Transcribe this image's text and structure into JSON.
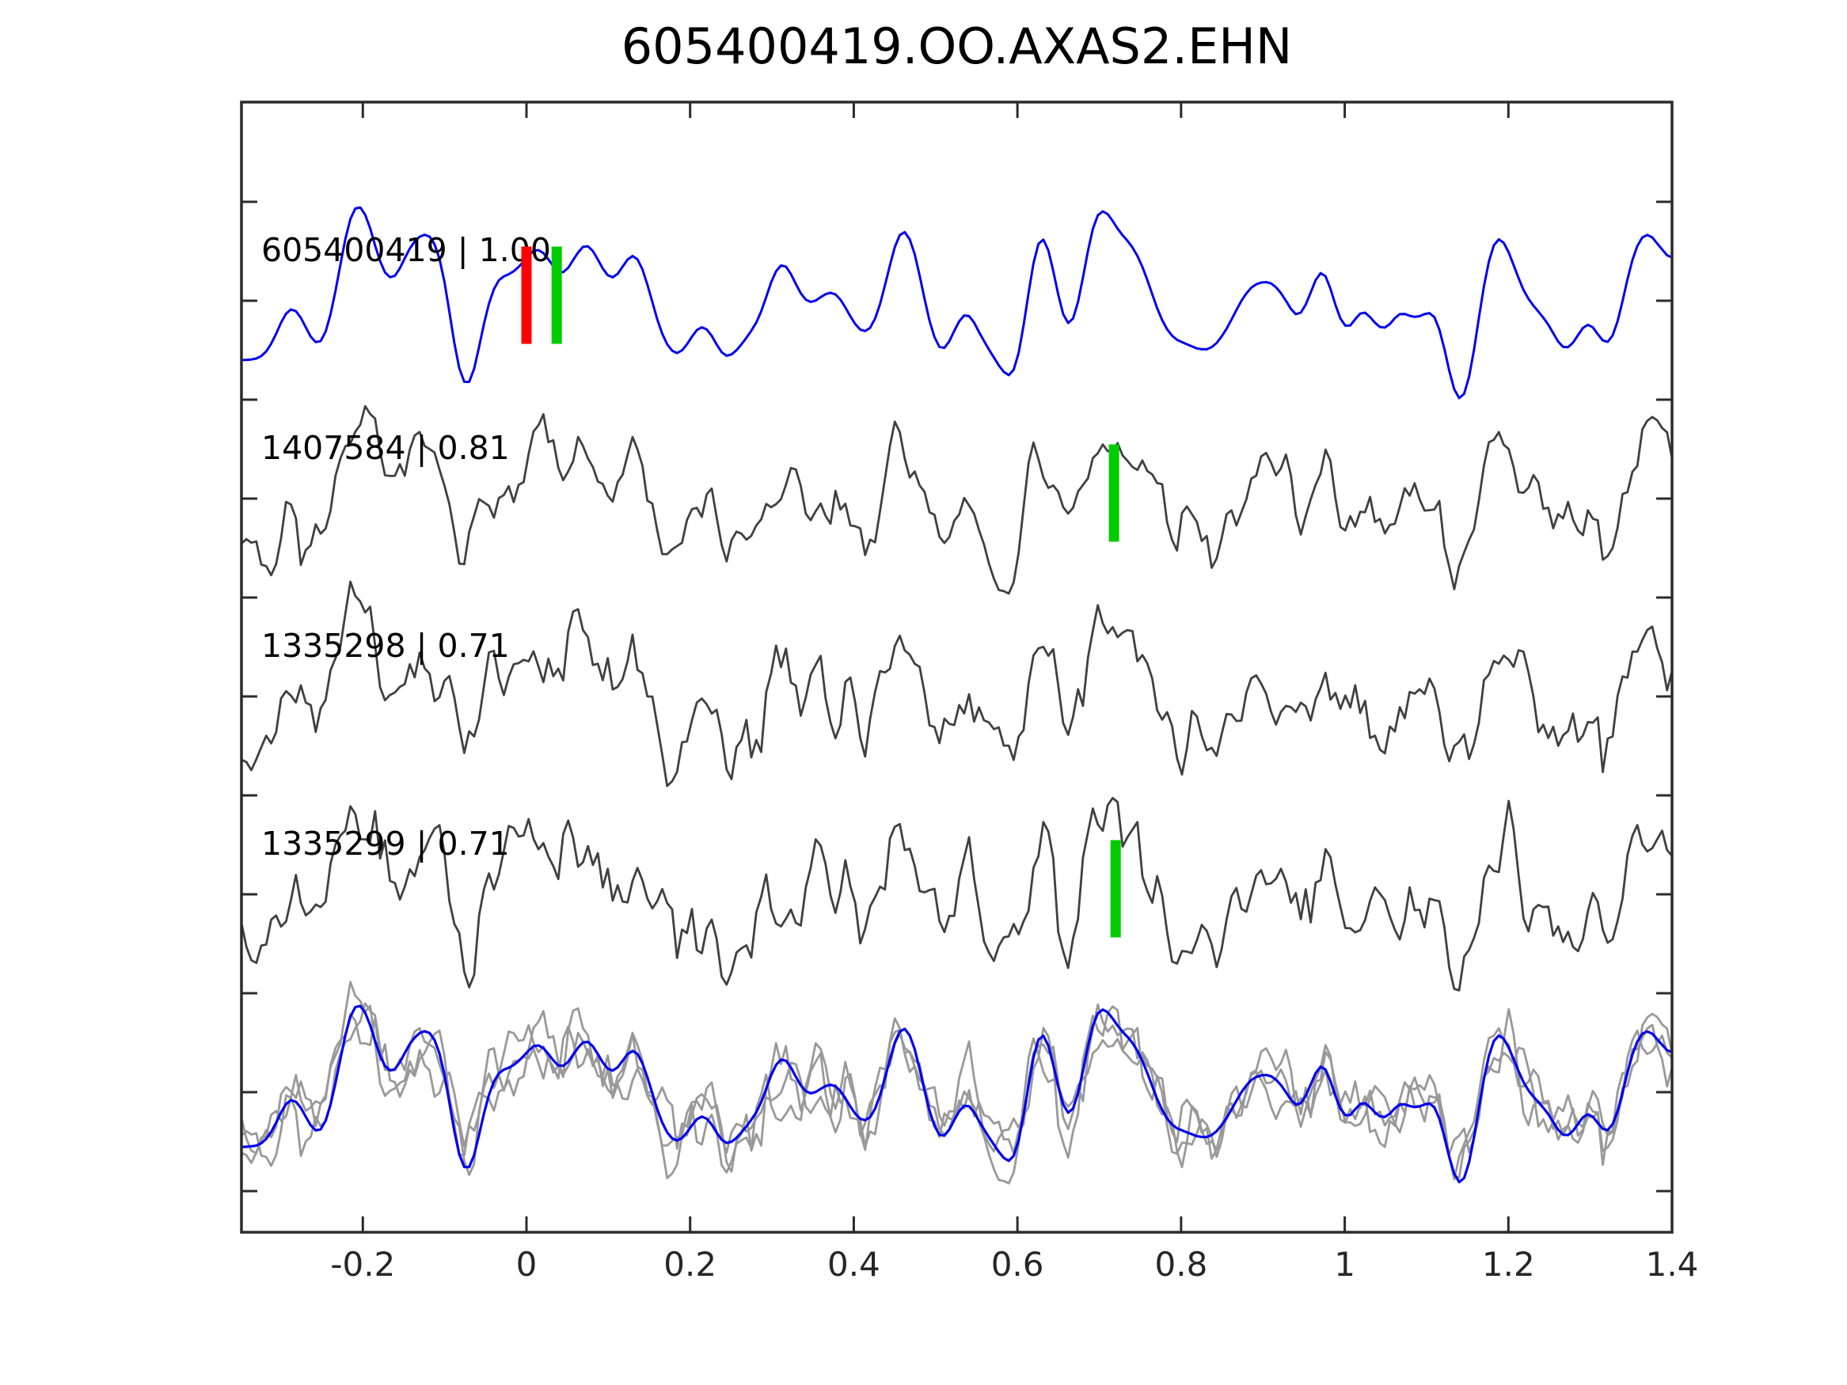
{
  "chart_data": {
    "type": "line",
    "title": "605400419.OO.AXAS2.EHN",
    "xlabel": "",
    "ylabel": "",
    "x_range": [
      -0.348,
      1.4
    ],
    "grid": false,
    "legend": false,
    "x_ticks": {
      "values": [
        -0.2,
        0,
        0.2,
        0.4,
        0.6,
        0.8,
        1,
        1.2,
        1.4
      ],
      "labels": [
        "-0.2",
        "0",
        "0.2",
        "0.4",
        "0.6",
        "0.8",
        "1",
        "1.2",
        "1.4"
      ]
    },
    "traces": [
      {
        "event_id": "605400419",
        "label": "605400419 | 1.00",
        "correlation": 1.0,
        "color": "#0000f0",
        "markers": [
          {
            "color": "#ff0000",
            "t": 0.0
          },
          {
            "color": "#00cc00",
            "t": 0.037
          }
        ]
      },
      {
        "event_id": "1407584",
        "label": "1407584 | 0.81",
        "correlation": 0.81,
        "color": "#404040",
        "markers": [
          {
            "color": "#00cc00",
            "t": 0.718
          }
        ]
      },
      {
        "event_id": "1335298",
        "label": "1335298 | 0.71",
        "correlation": 0.71,
        "color": "#404040",
        "markers": []
      },
      {
        "event_id": "1335299",
        "label": "1335299 | 0.71",
        "correlation": 0.71,
        "color": "#404040",
        "markers": [
          {
            "color": "#00cc00",
            "t": 0.72
          }
        ]
      }
    ],
    "overlay": {
      "template_color": "#999999",
      "target_color": "#0000f0"
    },
    "style": {
      "axis_color": "#2b2b2b",
      "text_color": "#000000",
      "tick_label_color": "#262626",
      "background": "#ffffff",
      "marker_red": "#ff0000",
      "marker_green": "#00cc00"
    },
    "synthesis": {
      "note": "waveform polylines are band-limited-noise approximations of the plotted seismograms",
      "base_seed": 7,
      "trace_seeds": [
        7,
        101,
        202,
        303
      ],
      "samples": 290
    }
  }
}
